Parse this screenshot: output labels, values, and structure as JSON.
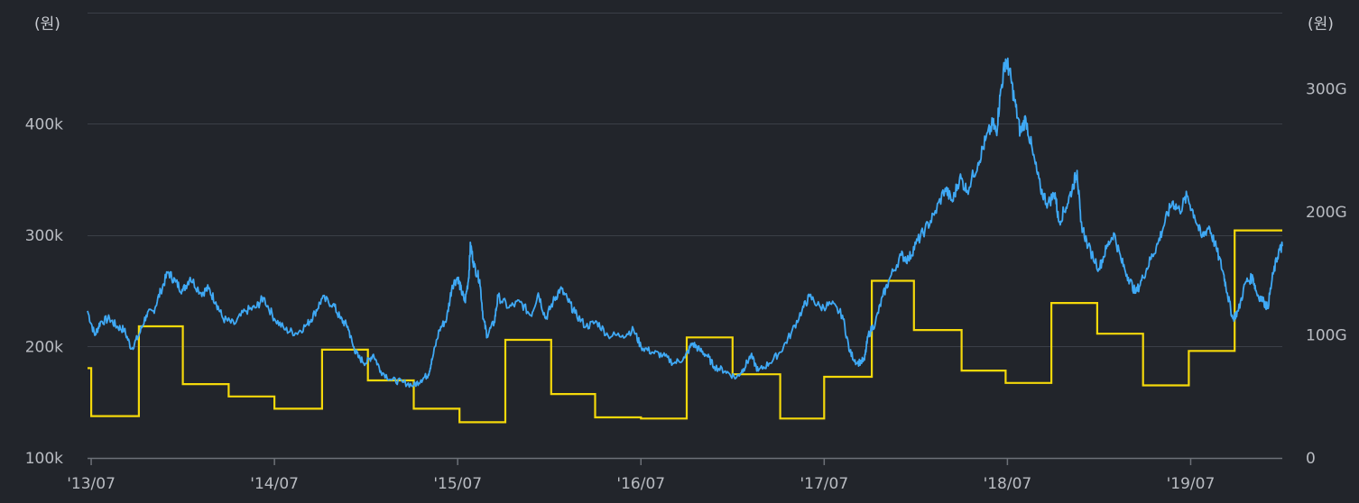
{
  "chart_data": {
    "type": "line",
    "left_axis": {
      "unit": "(원)",
      "ticks": [
        "100k",
        "200k",
        "300k",
        "400k"
      ],
      "tick_values": [
        100000,
        200000,
        300000,
        400000
      ],
      "range": [
        100000,
        503000
      ]
    },
    "right_axis": {
      "unit": "(원)",
      "ticks": [
        "0",
        "100G",
        "200G",
        "300G"
      ],
      "tick_values": [
        0,
        100,
        200,
        300
      ],
      "range": [
        0,
        365
      ]
    },
    "x_axis": {
      "ticks": [
        "'13/07",
        "'14/07",
        "'15/07",
        "'16/07",
        "'17/07",
        "'18/07",
        "'19/07"
      ],
      "tick_positions": [
        2013.5,
        2014.5,
        2015.5,
        2016.5,
        2017.5,
        2018.5,
        2019.5
      ],
      "range": [
        2013.48,
        2020.0
      ]
    },
    "grid": true,
    "colors": {
      "price": "#3fa9f5",
      "volume": "#f5d90a",
      "grid": "#3b3f47",
      "axis": "#6d7178",
      "background": "#22252b"
    },
    "series": [
      {
        "axis": "left",
        "color": "#3fa9f5",
        "points": [
          [
            2013.48,
            232000
          ],
          [
            2013.52,
            210000
          ],
          [
            2013.55,
            222000
          ],
          [
            2013.6,
            225000
          ],
          [
            2013.64,
            218000
          ],
          [
            2013.68,
            215000
          ],
          [
            2013.72,
            198000
          ],
          [
            2013.76,
            210000
          ],
          [
            2013.8,
            228000
          ],
          [
            2013.84,
            232000
          ],
          [
            2013.88,
            250000
          ],
          [
            2013.92,
            267000
          ],
          [
            2013.96,
            258000
          ],
          [
            2014.0,
            250000
          ],
          [
            2014.04,
            262000
          ],
          [
            2014.1,
            248000
          ],
          [
            2014.14,
            252000
          ],
          [
            2014.18,
            240000
          ],
          [
            2014.22,
            225000
          ],
          [
            2014.28,
            220000
          ],
          [
            2014.34,
            232000
          ],
          [
            2014.4,
            235000
          ],
          [
            2014.44,
            244000
          ],
          [
            2014.5,
            225000
          ],
          [
            2014.56,
            215000
          ],
          [
            2014.62,
            212000
          ],
          [
            2014.68,
            220000
          ],
          [
            2014.72,
            230000
          ],
          [
            2014.76,
            243000
          ],
          [
            2014.82,
            238000
          ],
          [
            2014.86,
            225000
          ],
          [
            2014.9,
            218000
          ],
          [
            2014.93,
            200000
          ],
          [
            2014.96,
            190000
          ],
          [
            2015.0,
            185000
          ],
          [
            2015.04,
            193000
          ],
          [
            2015.08,
            178000
          ],
          [
            2015.14,
            170000
          ],
          [
            2015.2,
            168000
          ],
          [
            2015.26,
            165000
          ],
          [
            2015.3,
            170000
          ],
          [
            2015.34,
            175000
          ],
          [
            2015.36,
            188000
          ],
          [
            2015.4,
            215000
          ],
          [
            2015.44,
            225000
          ],
          [
            2015.47,
            255000
          ],
          [
            2015.5,
            262000
          ],
          [
            2015.52,
            250000
          ],
          [
            2015.54,
            240000
          ],
          [
            2015.56,
            262000
          ],
          [
            2015.57,
            292000
          ],
          [
            2015.59,
            272000
          ],
          [
            2015.62,
            260000
          ],
          [
            2015.64,
            225000
          ],
          [
            2015.66,
            210000
          ],
          [
            2015.7,
            222000
          ],
          [
            2015.72,
            245000
          ],
          [
            2015.78,
            235000
          ],
          [
            2015.84,
            240000
          ],
          [
            2015.9,
            228000
          ],
          [
            2015.94,
            248000
          ],
          [
            2015.98,
            225000
          ],
          [
            2016.02,
            240000
          ],
          [
            2016.06,
            252000
          ],
          [
            2016.1,
            242000
          ],
          [
            2016.14,
            230000
          ],
          [
            2016.2,
            218000
          ],
          [
            2016.26,
            222000
          ],
          [
            2016.32,
            210000
          ],
          [
            2016.4,
            210000
          ],
          [
            2016.46,
            215000
          ],
          [
            2016.5,
            200000
          ],
          [
            2016.56,
            195000
          ],
          [
            2016.62,
            192000
          ],
          [
            2016.68,
            185000
          ],
          [
            2016.74,
            190000
          ],
          [
            2016.78,
            203000
          ],
          [
            2016.82,
            197000
          ],
          [
            2016.86,
            192000
          ],
          [
            2016.9,
            182000
          ],
          [
            2016.96,
            178000
          ],
          [
            2017.02,
            172000
          ],
          [
            2017.06,
            180000
          ],
          [
            2017.1,
            192000
          ],
          [
            2017.14,
            178000
          ],
          [
            2017.2,
            185000
          ],
          [
            2017.26,
            195000
          ],
          [
            2017.32,
            212000
          ],
          [
            2017.38,
            233000
          ],
          [
            2017.42,
            245000
          ],
          [
            2017.48,
            235000
          ],
          [
            2017.54,
            238000
          ],
          [
            2017.6,
            228000
          ],
          [
            2017.64,
            195000
          ],
          [
            2017.68,
            185000
          ],
          [
            2017.72,
            188000
          ],
          [
            2017.74,
            210000
          ],
          [
            2017.78,
            222000
          ],
          [
            2017.82,
            245000
          ],
          [
            2017.86,
            262000
          ],
          [
            2017.92,
            282000
          ],
          [
            2017.96,
            278000
          ],
          [
            2018.0,
            292000
          ],
          [
            2018.05,
            305000
          ],
          [
            2018.1,
            318000
          ],
          [
            2018.16,
            342000
          ],
          [
            2018.2,
            330000
          ],
          [
            2018.24,
            352000
          ],
          [
            2018.28,
            340000
          ],
          [
            2018.34,
            365000
          ],
          [
            2018.38,
            385000
          ],
          [
            2018.42,
            400000
          ],
          [
            2018.44,
            392000
          ],
          [
            2018.46,
            425000
          ],
          [
            2018.49,
            458000
          ],
          [
            2018.51,
            448000
          ],
          [
            2018.54,
            420000
          ],
          [
            2018.57,
            392000
          ],
          [
            2018.6,
            405000
          ],
          [
            2018.64,
            372000
          ],
          [
            2018.68,
            342000
          ],
          [
            2018.72,
            328000
          ],
          [
            2018.76,
            338000
          ],
          [
            2018.78,
            312000
          ],
          [
            2018.82,
            325000
          ],
          [
            2018.86,
            345000
          ],
          [
            2018.88,
            358000
          ],
          [
            2018.9,
            312000
          ],
          [
            2018.94,
            290000
          ],
          [
            2019.0,
            270000
          ],
          [
            2019.04,
            288000
          ],
          [
            2019.08,
            302000
          ],
          [
            2019.12,
            278000
          ],
          [
            2019.16,
            262000
          ],
          [
            2019.2,
            248000
          ],
          [
            2019.24,
            262000
          ],
          [
            2019.28,
            278000
          ],
          [
            2019.32,
            292000
          ],
          [
            2019.36,
            312000
          ],
          [
            2019.4,
            330000
          ],
          [
            2019.44,
            322000
          ],
          [
            2019.48,
            335000
          ],
          [
            2019.52,
            318000
          ],
          [
            2019.56,
            298000
          ],
          [
            2019.6,
            308000
          ],
          [
            2019.64,
            288000
          ],
          [
            2019.68,
            265000
          ],
          [
            2019.7,
            248000
          ],
          [
            2019.73,
            225000
          ],
          [
            2019.76,
            232000
          ],
          [
            2019.8,
            258000
          ],
          [
            2019.84,
            262000
          ],
          [
            2019.86,
            248000
          ],
          [
            2019.9,
            240000
          ],
          [
            2019.92,
            235000
          ],
          [
            2019.95,
            265000
          ],
          [
            2019.98,
            285000
          ],
          [
            2020.0,
            290000
          ]
        ]
      },
      {
        "axis": "right",
        "color": "#f5d90a",
        "steps": [
          [
            2013.48,
            2013.5,
            73
          ],
          [
            2013.5,
            2013.76,
            34
          ],
          [
            2013.76,
            2014.0,
            107
          ],
          [
            2014.0,
            2014.25,
            60
          ],
          [
            2014.25,
            2014.5,
            50
          ],
          [
            2014.5,
            2014.76,
            40
          ],
          [
            2014.76,
            2015.01,
            88
          ],
          [
            2015.01,
            2015.26,
            63
          ],
          [
            2015.26,
            2015.51,
            40
          ],
          [
            2015.51,
            2015.76,
            29
          ],
          [
            2015.76,
            2016.01,
            96
          ],
          [
            2016.01,
            2016.25,
            52
          ],
          [
            2016.25,
            2016.5,
            33
          ],
          [
            2016.5,
            2016.75,
            32
          ],
          [
            2016.75,
            2017.0,
            98
          ],
          [
            2017.0,
            2017.26,
            68
          ],
          [
            2017.26,
            2017.5,
            32
          ],
          [
            2017.5,
            2017.76,
            66
          ],
          [
            2017.76,
            2017.99,
            144
          ],
          [
            2017.99,
            2018.25,
            104
          ],
          [
            2018.25,
            2018.49,
            71
          ],
          [
            2018.49,
            2018.74,
            61
          ],
          [
            2018.74,
            2018.99,
            126
          ],
          [
            2018.99,
            2019.24,
            101
          ],
          [
            2019.24,
            2019.49,
            59
          ],
          [
            2019.49,
            2019.74,
            87
          ],
          [
            2019.74,
            2020.0,
            185
          ]
        ]
      }
    ]
  }
}
